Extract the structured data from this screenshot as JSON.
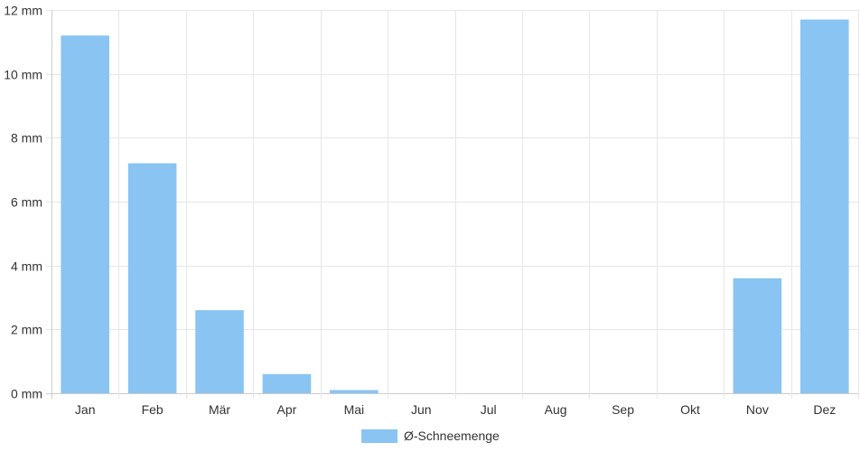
{
  "chart_data": {
    "type": "bar",
    "categories": [
      "Jan",
      "Feb",
      "Mär",
      "Apr",
      "Mai",
      "Jun",
      "Jul",
      "Aug",
      "Sep",
      "Okt",
      "Nov",
      "Dez"
    ],
    "series": [
      {
        "name": "Ø-Schneemenge",
        "values": [
          11.2,
          7.2,
          2.6,
          0.6,
          0.1,
          0,
          0,
          0,
          0,
          0,
          3.6,
          11.7
        ]
      }
    ],
    "y_ticks": [
      "0 mm",
      "2 mm",
      "4 mm",
      "6 mm",
      "8 mm",
      "10 mm",
      "12 mm"
    ],
    "ylim": [
      0,
      12
    ],
    "grid": true,
    "legend_position": "bottom",
    "colors": {
      "bar": "#89c4f2",
      "grid": "#e6e6e6",
      "axis": "#cccccc",
      "text": "#333333"
    }
  }
}
